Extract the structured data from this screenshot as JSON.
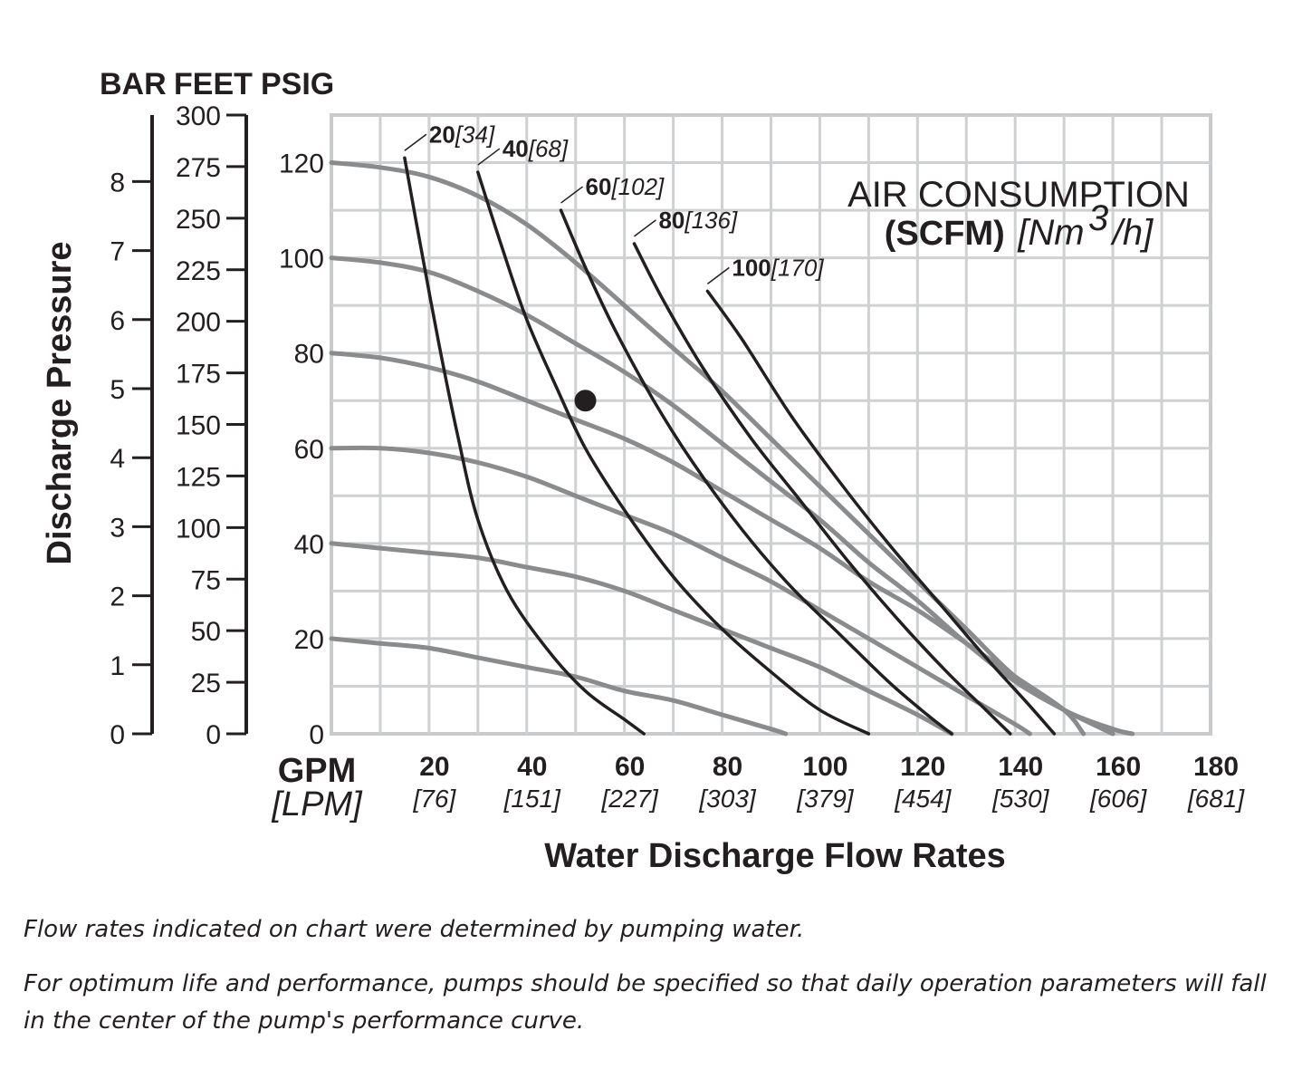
{
  "chart_data": {
    "type": "line",
    "xlabel": "Water Discharge Flow Rates",
    "x_unit_primary": "GPM",
    "x_unit_secondary": "[LPM]",
    "xlim": [
      0,
      180
    ],
    "x_ticks": [
      {
        "value": 20,
        "label": "20",
        "sub": "[76]"
      },
      {
        "value": 40,
        "label": "40",
        "sub": "[151]"
      },
      {
        "value": 60,
        "label": "60",
        "sub": "[227]"
      },
      {
        "value": 80,
        "label": "80",
        "sub": "[303]"
      },
      {
        "value": 100,
        "label": "100",
        "sub": "[379]"
      },
      {
        "value": 120,
        "label": "120",
        "sub": "[454]"
      },
      {
        "value": 140,
        "label": "140",
        "sub": "[530]"
      },
      {
        "value": 160,
        "label": "160",
        "sub": "[606]"
      },
      {
        "value": 180,
        "label": "180",
        "sub": "[681]"
      }
    ],
    "ylabel": "Discharge Pressure",
    "ylim": [
      0,
      130
    ],
    "y_axis_psig": {
      "header": "PSIG",
      "ticks": [
        0,
        20,
        40,
        60,
        80,
        100,
        120
      ]
    },
    "y_axis_feet": {
      "header": "FEET",
      "ticks": [
        0,
        25,
        50,
        75,
        100,
        125,
        150,
        175,
        200,
        225,
        250,
        275,
        300
      ]
    },
    "y_axis_bar": {
      "header": "BAR",
      "ticks": [
        0,
        1,
        2,
        3,
        4,
        5,
        6,
        7,
        8
      ]
    },
    "grid": true,
    "legend_title": {
      "line1": "AIR CONSUMPTION",
      "line2_bold": "(SCFM)",
      "line2_pre": "[Nm",
      "line2_sup": "3",
      "line2_post": "/h]"
    },
    "pressure_curves": [
      {
        "points": [
          [
            0,
            120
          ],
          [
            10,
            119
          ],
          [
            20,
            117
          ],
          [
            30,
            113
          ],
          [
            40,
            107
          ],
          [
            50,
            99
          ],
          [
            60,
            90
          ],
          [
            70,
            81
          ],
          [
            80,
            72
          ],
          [
            90,
            62
          ],
          [
            100,
            52
          ],
          [
            110,
            42
          ],
          [
            120,
            32
          ],
          [
            130,
            22
          ],
          [
            140,
            12
          ],
          [
            150,
            5
          ],
          [
            160,
            1
          ],
          [
            164,
            0
          ]
        ]
      },
      {
        "points": [
          [
            0,
            100
          ],
          [
            10,
            99
          ],
          [
            20,
            97
          ],
          [
            30,
            93
          ],
          [
            40,
            88
          ],
          [
            50,
            82
          ],
          [
            60,
            76
          ],
          [
            70,
            69
          ],
          [
            80,
            61
          ],
          [
            90,
            53
          ],
          [
            100,
            45
          ],
          [
            110,
            36
          ],
          [
            120,
            28
          ],
          [
            130,
            19
          ],
          [
            140,
            11
          ],
          [
            150,
            5
          ],
          [
            160,
            0
          ]
        ]
      },
      {
        "points": [
          [
            0,
            80
          ],
          [
            10,
            79
          ],
          [
            20,
            77
          ],
          [
            30,
            74
          ],
          [
            40,
            70
          ],
          [
            50,
            66
          ],
          [
            60,
            62
          ],
          [
            70,
            57
          ],
          [
            80,
            51
          ],
          [
            90,
            45
          ],
          [
            100,
            39
          ],
          [
            110,
            32
          ],
          [
            120,
            26
          ],
          [
            130,
            19
          ],
          [
            140,
            12
          ],
          [
            150,
            5
          ],
          [
            154,
            0
          ]
        ]
      },
      {
        "points": [
          [
            0,
            60
          ],
          [
            10,
            60
          ],
          [
            20,
            59
          ],
          [
            30,
            57
          ],
          [
            40,
            54
          ],
          [
            50,
            50
          ],
          [
            60,
            46
          ],
          [
            70,
            42
          ],
          [
            80,
            37
          ],
          [
            90,
            32
          ],
          [
            100,
            26
          ],
          [
            110,
            20
          ],
          [
            120,
            14
          ],
          [
            130,
            8
          ],
          [
            140,
            2
          ],
          [
            143,
            0
          ]
        ]
      },
      {
        "points": [
          [
            0,
            40
          ],
          [
            10,
            39
          ],
          [
            20,
            38
          ],
          [
            30,
            37
          ],
          [
            40,
            35
          ],
          [
            50,
            33
          ],
          [
            60,
            30
          ],
          [
            70,
            26
          ],
          [
            80,
            22
          ],
          [
            90,
            18
          ],
          [
            100,
            14
          ],
          [
            110,
            9
          ],
          [
            120,
            4
          ],
          [
            127,
            0
          ]
        ]
      },
      {
        "points": [
          [
            0,
            20
          ],
          [
            10,
            19
          ],
          [
            20,
            18
          ],
          [
            30,
            16
          ],
          [
            40,
            14
          ],
          [
            50,
            12
          ],
          [
            60,
            9
          ],
          [
            70,
            7
          ],
          [
            80,
            4
          ],
          [
            90,
            1
          ],
          [
            93,
            0
          ]
        ]
      }
    ],
    "air_curves": [
      {
        "scfm": "20",
        "nm3h": "[34]",
        "points": [
          [
            15,
            121
          ],
          [
            18,
            104
          ],
          [
            22,
            82
          ],
          [
            26,
            62
          ],
          [
            30,
            45
          ],
          [
            36,
            30
          ],
          [
            44,
            18
          ],
          [
            52,
            9
          ],
          [
            60,
            3
          ],
          [
            64,
            0
          ]
        ]
      },
      {
        "scfm": "40",
        "nm3h": "[68]",
        "points": [
          [
            30,
            118
          ],
          [
            35,
            102
          ],
          [
            40,
            87
          ],
          [
            46,
            73
          ],
          [
            52,
            60
          ],
          [
            60,
            47
          ],
          [
            70,
            33
          ],
          [
            80,
            22
          ],
          [
            90,
            13
          ],
          [
            100,
            5
          ],
          [
            110,
            0
          ]
        ]
      },
      {
        "scfm": "60",
        "nm3h": "[102]",
        "points": [
          [
            47,
            110
          ],
          [
            52,
            98
          ],
          [
            58,
            85
          ],
          [
            66,
            70
          ],
          [
            74,
            57
          ],
          [
            84,
            43
          ],
          [
            94,
            31
          ],
          [
            104,
            21
          ],
          [
            114,
            11
          ],
          [
            122,
            4
          ],
          [
            127,
            0
          ]
        ]
      },
      {
        "scfm": "80",
        "nm3h": "[136]",
        "points": [
          [
            62,
            103
          ],
          [
            68,
            91
          ],
          [
            76,
            77
          ],
          [
            86,
            62
          ],
          [
            96,
            49
          ],
          [
            106,
            36
          ],
          [
            116,
            24
          ],
          [
            126,
            13
          ],
          [
            134,
            5
          ],
          [
            139,
            0
          ]
        ]
      },
      {
        "scfm": "100",
        "nm3h": "[170]",
        "points": [
          [
            77,
            93
          ],
          [
            84,
            83
          ],
          [
            94,
            67
          ],
          [
            104,
            53
          ],
          [
            114,
            40
          ],
          [
            124,
            28
          ],
          [
            134,
            16
          ],
          [
            142,
            7
          ],
          [
            148,
            0
          ]
        ]
      }
    ],
    "operating_point": {
      "x": 52,
      "y": 70
    }
  },
  "notes": [
    "Flow rates indicated on chart were determined by pumping water.",
    "For optimum life and performance, pumps should be specified so that daily operation parameters will fall in the center of the pump's performance curve."
  ]
}
